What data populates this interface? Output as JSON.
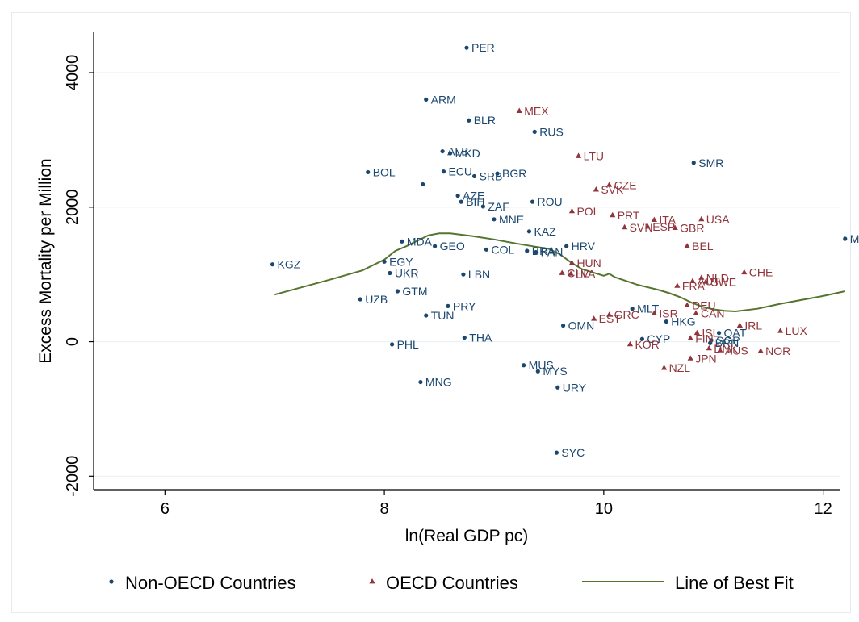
{
  "chart_data": {
    "type": "scatter",
    "xlabel": "ln(Real GDP pc)",
    "ylabel": "Excess Mortality per Million",
    "xlim": [
      5.35,
      12.15
    ],
    "ylim": [
      -2200,
      4600
    ],
    "xticks": [
      6,
      8,
      10,
      12
    ],
    "yticks": [
      -2000,
      0,
      2000,
      4000
    ],
    "grid": "horizontal",
    "legend_position": "bottom",
    "colors": {
      "non_oecd": "#1a476f",
      "oecd": "#90353b",
      "fit": "#55752f",
      "grid": "#eaf2f3"
    },
    "series": [
      {
        "name": "Non-OECD Countries",
        "marker": "dot",
        "points": [
          {
            "label": "PER",
            "x": 8.75,
            "y": 4370
          },
          {
            "label": "ARM",
            "x": 8.38,
            "y": 3600
          },
          {
            "label": "BLR",
            "x": 8.77,
            "y": 3290
          },
          {
            "label": "RUS",
            "x": 9.37,
            "y": 3120
          },
          {
            "label": "ALB",
            "x": 8.53,
            "y": 2830
          },
          {
            "label": "MKD",
            "x": 8.6,
            "y": 2800
          },
          {
            "label": "BOL",
            "x": 7.85,
            "y": 2520
          },
          {
            "label": "ECU",
            "x": 8.54,
            "y": 2530
          },
          {
            "label": "SRB",
            "x": 8.82,
            "y": 2460
          },
          {
            "label": "BGR",
            "x": 9.03,
            "y": 2500
          },
          {
            "label": "SMR",
            "x": 10.82,
            "y": 2660
          },
          {
            "label": "",
            "x": 8.35,
            "y": 2340
          },
          {
            "label": "AZE",
            "x": 8.67,
            "y": 2170
          },
          {
            "label": "BIH",
            "x": 8.7,
            "y": 2080
          },
          {
            "label": "ZAF",
            "x": 8.9,
            "y": 2010
          },
          {
            "label": "ROU",
            "x": 9.35,
            "y": 2080
          },
          {
            "label": "MNE",
            "x": 9.0,
            "y": 1820
          },
          {
            "label": "KAZ",
            "x": 9.32,
            "y": 1640
          },
          {
            "label": "MDA",
            "x": 8.16,
            "y": 1490
          },
          {
            "label": "GEO",
            "x": 8.46,
            "y": 1420
          },
          {
            "label": "COL",
            "x": 8.93,
            "y": 1370
          },
          {
            "label": "BRA",
            "x": 9.3,
            "y": 1350
          },
          {
            "label": "PAN",
            "x": 9.38,
            "y": 1330
          },
          {
            "label": "HRV",
            "x": 9.66,
            "y": 1420
          },
          {
            "label": "MCO",
            "x": 12.2,
            "y": 1530
          },
          {
            "label": "KGZ",
            "x": 6.98,
            "y": 1150
          },
          {
            "label": "EGY",
            "x": 8.0,
            "y": 1190
          },
          {
            "label": "UKR",
            "x": 8.05,
            "y": 1020
          },
          {
            "label": "LBN",
            "x": 8.72,
            "y": 1000
          },
          {
            "label": "GTM",
            "x": 8.12,
            "y": 750
          },
          {
            "label": "UZB",
            "x": 7.78,
            "y": 630
          },
          {
            "label": "PRY",
            "x": 8.58,
            "y": 530
          },
          {
            "label": "TUN",
            "x": 8.38,
            "y": 390
          },
          {
            "label": "MLT",
            "x": 10.26,
            "y": 490
          },
          {
            "label": "HKG",
            "x": 10.57,
            "y": 300
          },
          {
            "label": "OMN",
            "x": 9.63,
            "y": 240
          },
          {
            "label": "QAT",
            "x": 11.05,
            "y": 130
          },
          {
            "label": "THA",
            "x": 8.73,
            "y": 60
          },
          {
            "label": "CYP",
            "x": 10.35,
            "y": 40
          },
          {
            "label": "SGP",
            "x": 10.98,
            "y": 20
          },
          {
            "label": "BRN",
            "x": 10.97,
            "y": -20
          },
          {
            "label": "PHL",
            "x": 8.07,
            "y": -40
          },
          {
            "label": "MUS",
            "x": 9.27,
            "y": -350
          },
          {
            "label": "MYS",
            "x": 9.4,
            "y": -440
          },
          {
            "label": "MNG",
            "x": 8.33,
            "y": -600
          },
          {
            "label": "URY",
            "x": 9.58,
            "y": -680
          },
          {
            "label": "SYC",
            "x": 9.57,
            "y": -1650
          }
        ]
      },
      {
        "name": "OECD Countries",
        "marker": "triangle",
        "points": [
          {
            "label": "MEX",
            "x": 9.23,
            "y": 3430
          },
          {
            "label": "LTU",
            "x": 9.77,
            "y": 2760
          },
          {
            "label": "CZE",
            "x": 10.05,
            "y": 2330
          },
          {
            "label": "SVK",
            "x": 9.93,
            "y": 2260
          },
          {
            "label": "POL",
            "x": 9.71,
            "y": 1940
          },
          {
            "label": "PRT",
            "x": 10.08,
            "y": 1880
          },
          {
            "label": "ITA",
            "x": 10.46,
            "y": 1810
          },
          {
            "label": "USA",
            "x": 10.89,
            "y": 1820
          },
          {
            "label": "SVN",
            "x": 10.19,
            "y": 1700
          },
          {
            "label": "ESP",
            "x": 10.4,
            "y": 1710
          },
          {
            "label": "GBR",
            "x": 10.65,
            "y": 1690
          },
          {
            "label": "BEL",
            "x": 10.76,
            "y": 1420
          },
          {
            "label": "HUN",
            "x": 9.71,
            "y": 1170
          },
          {
            "label": "CHL",
            "x": 9.62,
            "y": 1020
          },
          {
            "label": "LVA",
            "x": 9.7,
            "y": 1010
          },
          {
            "label": "CHE",
            "x": 11.28,
            "y": 1030
          },
          {
            "label": "NLD",
            "x": 10.89,
            "y": 950
          },
          {
            "label": "AUT",
            "x": 10.81,
            "y": 900
          },
          {
            "label": "SWE",
            "x": 10.93,
            "y": 890
          },
          {
            "label": "FRA",
            "x": 10.67,
            "y": 830
          },
          {
            "label": "DEU",
            "x": 10.76,
            "y": 540
          },
          {
            "label": "GRC",
            "x": 10.05,
            "y": 400
          },
          {
            "label": "EST",
            "x": 9.91,
            "y": 340
          },
          {
            "label": "ISR",
            "x": 10.46,
            "y": 420
          },
          {
            "label": "CAN",
            "x": 10.84,
            "y": 420
          },
          {
            "label": "IRL",
            "x": 11.24,
            "y": 240
          },
          {
            "label": "LUX",
            "x": 11.61,
            "y": 160
          },
          {
            "label": "ISL",
            "x": 10.85,
            "y": 130
          },
          {
            "label": "FIN",
            "x": 10.79,
            "y": 50
          },
          {
            "label": "KOR",
            "x": 10.24,
            "y": -40
          },
          {
            "label": "DNK",
            "x": 10.96,
            "y": -100
          },
          {
            "label": "AUS",
            "x": 11.06,
            "y": -130
          },
          {
            "label": "NOR",
            "x": 11.43,
            "y": -140
          },
          {
            "label": "JPN",
            "x": 10.79,
            "y": -250
          },
          {
            "label": "NZL",
            "x": 10.55,
            "y": -390
          }
        ]
      }
    ],
    "fit_line": {
      "name": "Line of Best Fit",
      "points": [
        [
          7.0,
          700
        ],
        [
          7.5,
          920
        ],
        [
          7.8,
          1060
        ],
        [
          8.0,
          1220
        ],
        [
          8.1,
          1350
        ],
        [
          8.2,
          1420
        ],
        [
          8.3,
          1500
        ],
        [
          8.4,
          1580
        ],
        [
          8.5,
          1610
        ],
        [
          8.6,
          1610
        ],
        [
          8.8,
          1570
        ],
        [
          9.0,
          1520
        ],
        [
          9.2,
          1460
        ],
        [
          9.35,
          1420
        ],
        [
          9.5,
          1380
        ],
        [
          9.6,
          1300
        ],
        [
          9.7,
          1180
        ],
        [
          9.8,
          1080
        ],
        [
          9.9,
          1030
        ],
        [
          10.0,
          980
        ],
        [
          10.05,
          1010
        ],
        [
          10.1,
          960
        ],
        [
          10.3,
          850
        ],
        [
          10.5,
          770
        ],
        [
          10.6,
          720
        ],
        [
          10.7,
          660
        ],
        [
          10.8,
          580
        ],
        [
          10.9,
          520
        ],
        [
          11.0,
          480
        ],
        [
          11.1,
          460
        ],
        [
          11.2,
          450
        ],
        [
          11.4,
          490
        ],
        [
          11.6,
          560
        ],
        [
          11.8,
          620
        ],
        [
          12.0,
          680
        ],
        [
          12.2,
          750
        ]
      ]
    }
  }
}
